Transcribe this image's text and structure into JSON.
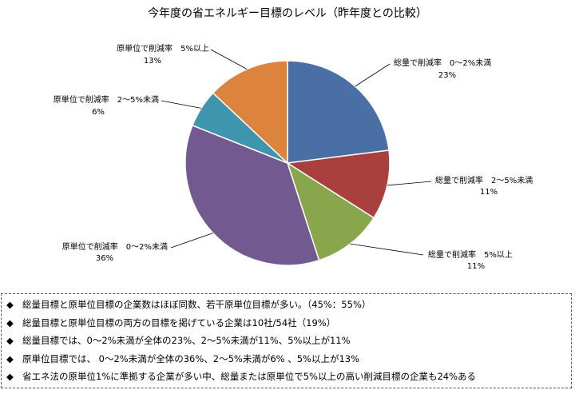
{
  "chart_data": {
    "type": "pie",
    "title": "今年度の省エネルギー目標のレベル（昨年度との比較）",
    "slices": [
      {
        "label": "総量で削減率　0～2%未満",
        "pct_label": "23%",
        "value": 23,
        "color": "#4a6fa5"
      },
      {
        "label": "総量で削減率　2～5%未満",
        "pct_label": "11%",
        "value": 11,
        "color": "#a9403e"
      },
      {
        "label": "総量で削減率　5%以上",
        "pct_label": "11%",
        "value": 11,
        "color": "#8aa64c"
      },
      {
        "label": "原単位で削減率　0～2%未満",
        "pct_label": "36%",
        "value": 36,
        "color": "#725a91"
      },
      {
        "label": "原単位で削減率　2～5%未満",
        "pct_label": "6%",
        "value": 6,
        "color": "#4095ae"
      },
      {
        "label": "原単位で削減率　5%以上",
        "pct_label": "13%",
        "value": 13,
        "color": "#dc843e"
      }
    ]
  },
  "notes": {
    "bullet": "◆",
    "items": [
      "総量目標と原単位目標の企業数はほぼ同数、若干原単位目標が多い。（45%：55%）",
      "総量目標と原単位目標の両方の目標を掲げている企業は10社/54社（19%）",
      "総量目標では、0～2%未満が全体の23%、2～5%未満が11%、5%以上が11%",
      "原単位目標では、 0～2%未満が全体の36%、2～5%未満が6% 、5%以上が13%",
      "省エネ法の原単位1%に準拠する企業が多い中、総量または原単位で5%以上の高い削減目標の企業も24%ある"
    ]
  }
}
